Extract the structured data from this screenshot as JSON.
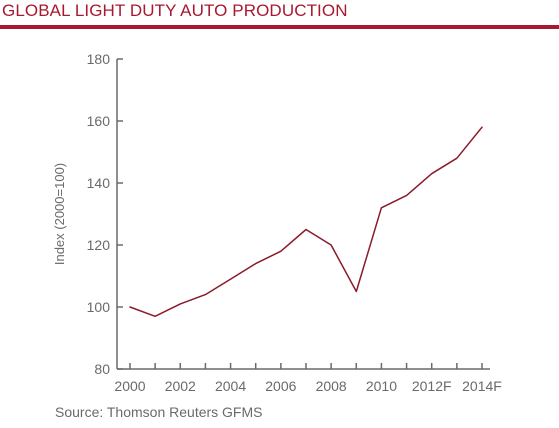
{
  "chart_data": {
    "type": "line",
    "title": "GLOBAL LIGHT DUTY AUTO PRODUCTION",
    "xlabel": "",
    "ylabel": "Index (2000=100)",
    "source": "Source: Thomson Reuters GFMS",
    "ylim": [
      80,
      180
    ],
    "yticks": [
      80,
      100,
      120,
      140,
      160,
      180
    ],
    "xlim": [
      2000,
      2014
    ],
    "xticks": [
      {
        "value": 2000,
        "label": "2000"
      },
      {
        "value": 2002,
        "label": "2002"
      },
      {
        "value": 2004,
        "label": "2004"
      },
      {
        "value": 2006,
        "label": "2006"
      },
      {
        "value": 2008,
        "label": "2008"
      },
      {
        "value": 2010,
        "label": "2010"
      },
      {
        "value": 2012,
        "label": "2012F"
      },
      {
        "value": 2014,
        "label": "2014F"
      }
    ],
    "grid": false,
    "legend": "none",
    "line_color": "#8b1a2b",
    "series": [
      {
        "x": [
          2000,
          2001,
          2002,
          2003,
          2004,
          2005,
          2006,
          2007,
          2008,
          2009,
          2010,
          2011,
          2012,
          2013,
          2014
        ],
        "values": [
          100,
          97,
          101,
          104,
          109,
          114,
          118,
          125,
          120,
          105,
          132,
          136,
          143,
          148,
          158
        ]
      }
    ]
  }
}
